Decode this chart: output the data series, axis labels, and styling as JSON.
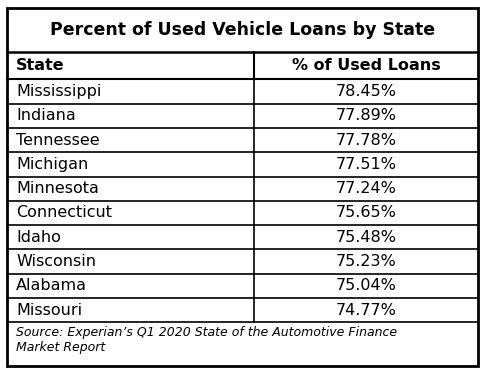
{
  "title": "Percent of Used Vehicle Loans by State",
  "col1_header": "State",
  "col2_header": "% of Used Loans",
  "rows": [
    [
      "Mississippi",
      "78.45%"
    ],
    [
      "Indiana",
      "77.89%"
    ],
    [
      "Tennessee",
      "77.78%"
    ],
    [
      "Michigan",
      "77.51%"
    ],
    [
      "Minnesota",
      "77.24%"
    ],
    [
      "Connecticut",
      "75.65%"
    ],
    [
      "Idaho",
      "75.48%"
    ],
    [
      "Wisconsin",
      "75.23%"
    ],
    [
      "Alabama",
      "75.04%"
    ],
    [
      "Missouri",
      "74.77%"
    ]
  ],
  "source_text": "Source: Experian’s Q1 2020 State of the Automotive Finance\nMarket Report",
  "bg_color": "#ffffff",
  "border_color": "#000000",
  "title_fontsize": 12.5,
  "header_fontsize": 11.5,
  "data_fontsize": 11.5,
  "source_fontsize": 9.0,
  "col_split": 0.525
}
